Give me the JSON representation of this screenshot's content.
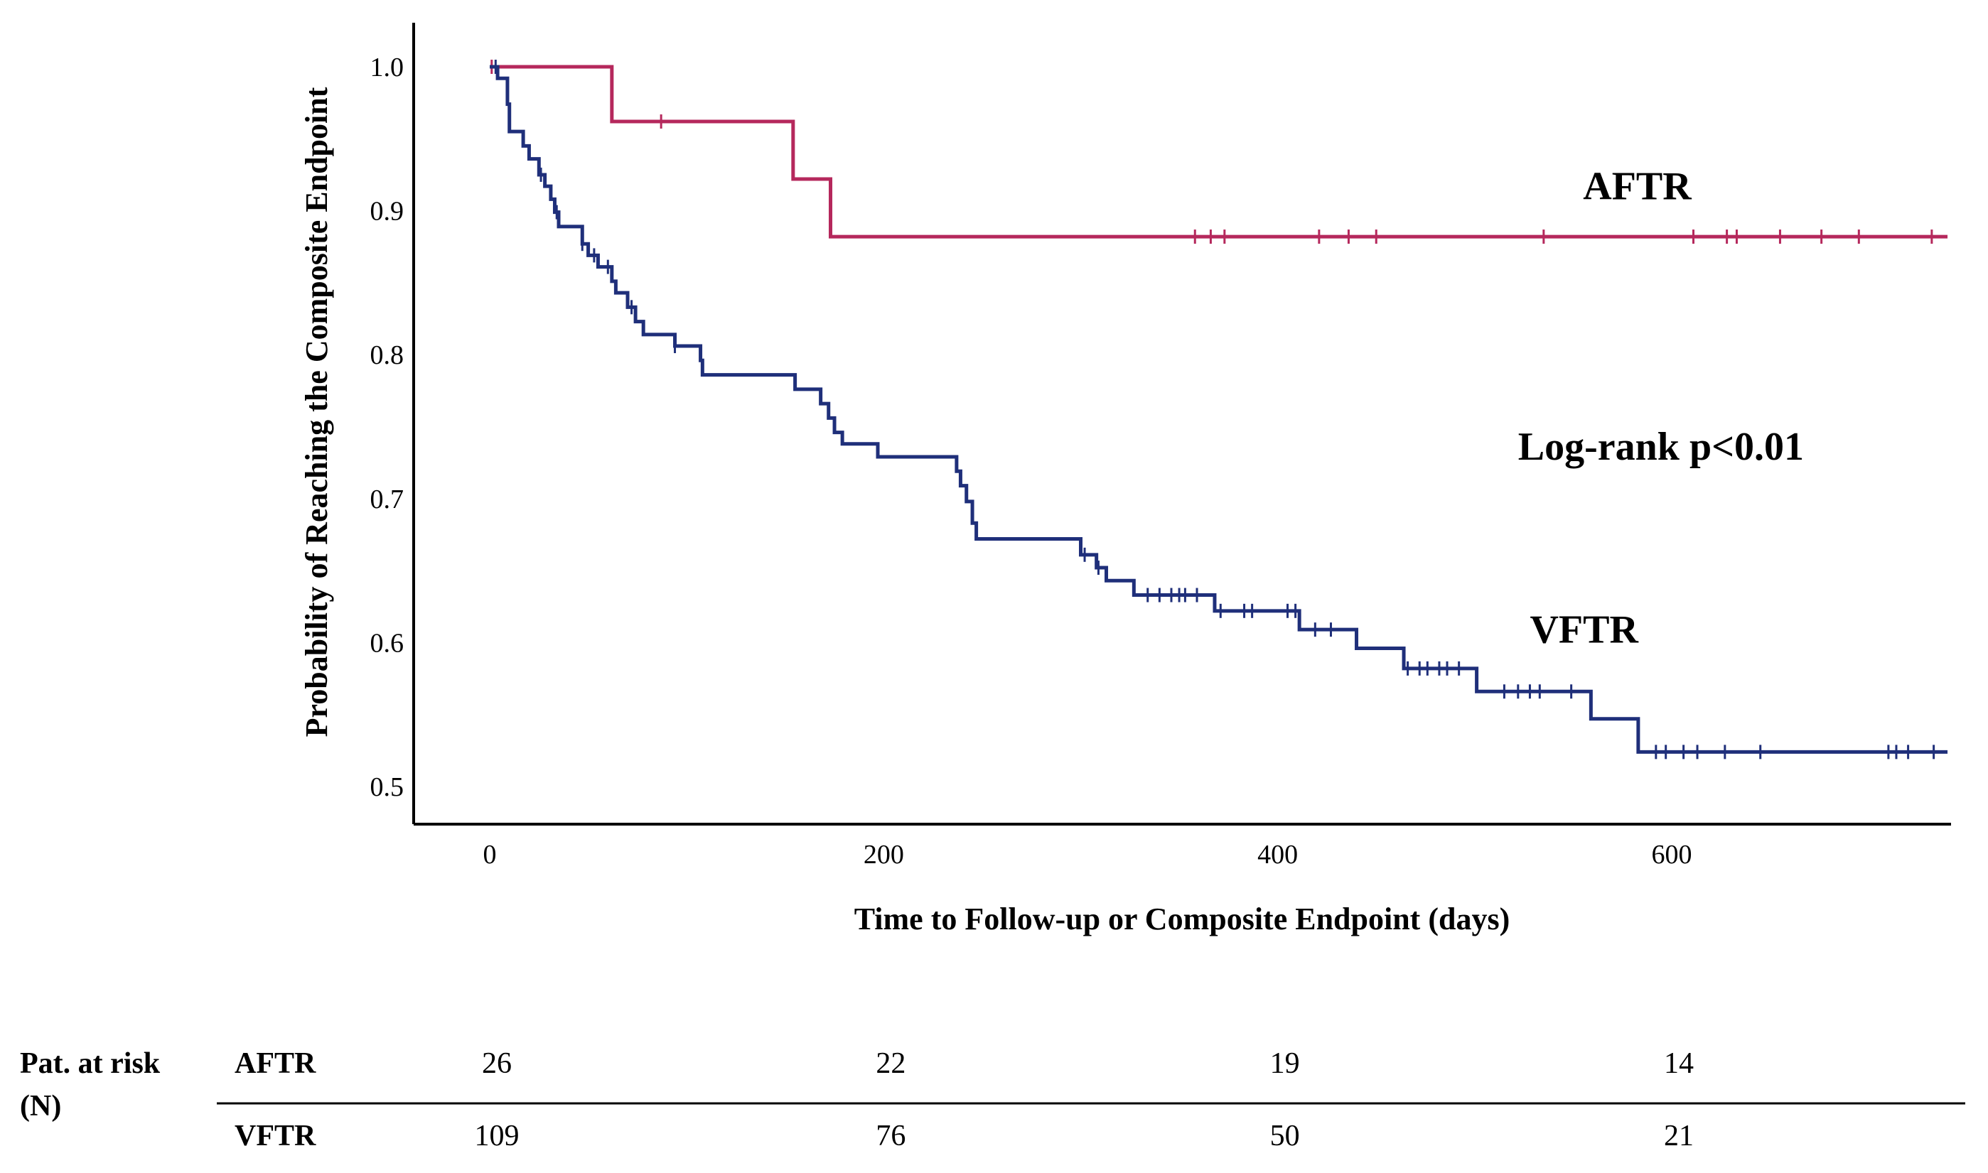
{
  "chart_data": {
    "type": "line",
    "subtype": "kaplan-meier",
    "title": "",
    "xlabel": "Time to Follow-up or Composite Endpoint (days)",
    "ylabel": "Probability of Reaching the Composite Endpoint",
    "xlim": [
      -35,
      740
    ],
    "ylim": [
      0.475,
      1.03
    ],
    "xticks": [
      0,
      200,
      400,
      600
    ],
    "yticks": [
      0.5,
      0.6,
      0.7,
      0.8,
      0.9,
      1.0
    ],
    "xtick_labels": [
      "0",
      "200",
      "400",
      "600"
    ],
    "ytick_labels": [
      "0.5",
      "0.6",
      "0.7",
      "0.8",
      "0.9",
      "1.0"
    ],
    "series": [
      {
        "name": "AFTR",
        "color": "#b5285c",
        "steps": [
          [
            0,
            1.0
          ],
          [
            62,
            0.962
          ],
          [
            154,
            0.922
          ],
          [
            173,
            0.882
          ],
          [
            740,
            0.882
          ]
        ],
        "censor_times": [
          1,
          87,
          358,
          366,
          373,
          421,
          436,
          450,
          535,
          611,
          628,
          633,
          655,
          676,
          695,
          732
        ]
      },
      {
        "name": "VFTR",
        "color": "#1f2f7a",
        "steps": [
          [
            0,
            1.0
          ],
          [
            4,
            0.992
          ],
          [
            9,
            0.974
          ],
          [
            10,
            0.955
          ],
          [
            17,
            0.945
          ],
          [
            20,
            0.936
          ],
          [
            25,
            0.925
          ],
          [
            28,
            0.917
          ],
          [
            31,
            0.908
          ],
          [
            33,
            0.899
          ],
          [
            35,
            0.889
          ],
          [
            47,
            0.877
          ],
          [
            50,
            0.869
          ],
          [
            55,
            0.861
          ],
          [
            62,
            0.851
          ],
          [
            64,
            0.843
          ],
          [
            70,
            0.833
          ],
          [
            74,
            0.823
          ],
          [
            78,
            0.814
          ],
          [
            94,
            0.806
          ],
          [
            107,
            0.796
          ],
          [
            108,
            0.786
          ],
          [
            155,
            0.776
          ],
          [
            168,
            0.766
          ],
          [
            172,
            0.756
          ],
          [
            175,
            0.746
          ],
          [
            179,
            0.738
          ],
          [
            197,
            0.729
          ],
          [
            237,
            0.719
          ],
          [
            239,
            0.709
          ],
          [
            242,
            0.698
          ],
          [
            245,
            0.683
          ],
          [
            247,
            0.672
          ],
          [
            300,
            0.661
          ],
          [
            308,
            0.652
          ],
          [
            313,
            0.643
          ],
          [
            327,
            0.633
          ],
          [
            368,
            0.622
          ],
          [
            411,
            0.609
          ],
          [
            440,
            0.596
          ],
          [
            464,
            0.582
          ],
          [
            501,
            0.566
          ],
          [
            559,
            0.547
          ],
          [
            583,
            0.524
          ],
          [
            740,
            0.524
          ]
        ],
        "censor_times": [
          3,
          26,
          34,
          47,
          53,
          60,
          72,
          94,
          302,
          309,
          334,
          340,
          346,
          350,
          353,
          359,
          371,
          383,
          387,
          405,
          409,
          419,
          427,
          466,
          472,
          476,
          482,
          486,
          492,
          515,
          522,
          528,
          533,
          549,
          592,
          597,
          606,
          613,
          627,
          645,
          710,
          714,
          720,
          733
        ]
      }
    ],
    "annotations": [
      {
        "text": "AFTR",
        "x": 555,
        "y": 0.908,
        "size": "large"
      },
      {
        "text": "Log-rank p<0.01",
        "x": 522,
        "y": 0.727,
        "size": "large"
      },
      {
        "text": "VFTR",
        "x": 528,
        "y": 0.6,
        "size": "large"
      }
    ],
    "risk_table": {
      "header": "Pat. at risk",
      "header_unit": "(N)",
      "times": [
        0,
        200,
        400,
        600
      ],
      "rows": [
        {
          "group": "AFTR",
          "values": [
            "26",
            "22",
            "19",
            "14"
          ]
        },
        {
          "group": "VFTR",
          "values": [
            "109",
            "76",
            "50",
            "21"
          ]
        }
      ]
    }
  }
}
